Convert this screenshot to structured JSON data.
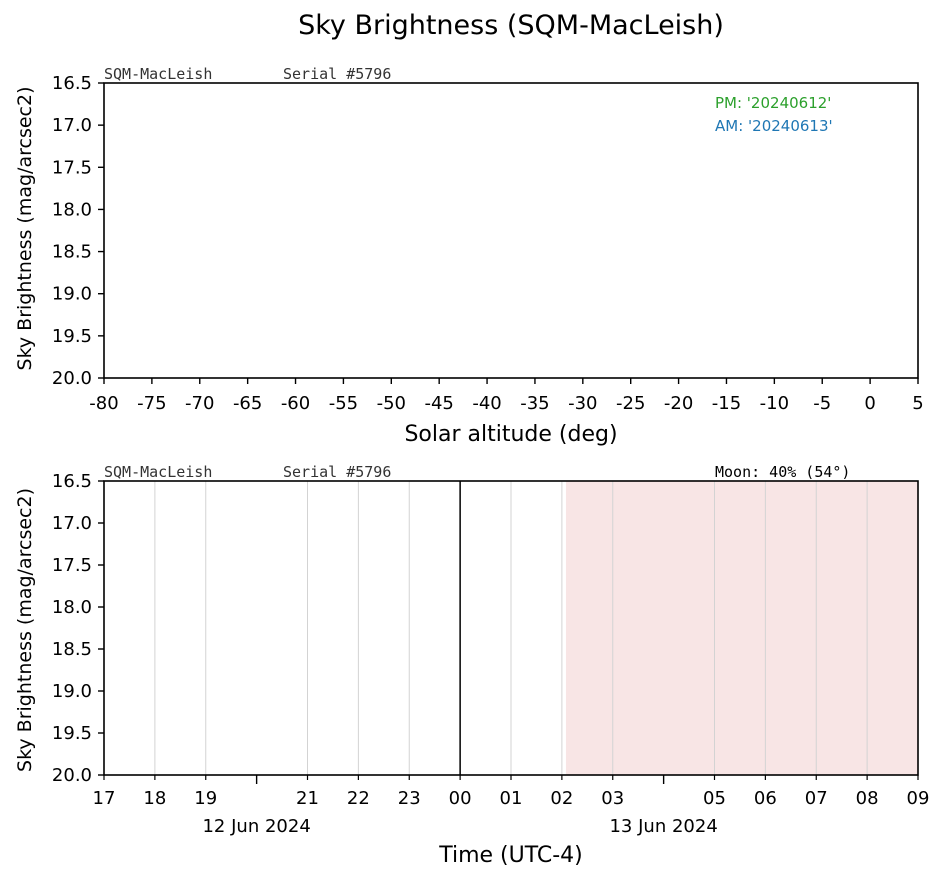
{
  "title": "Sky Brightness (SQM-MacLeish)",
  "colors": {
    "pm": "#2ca02c",
    "am": "#1f77b4",
    "shade": "#f8e5e5",
    "grid": "#d3d3d3"
  },
  "chart_data": [
    {
      "type": "line",
      "station": "SQM-MacLeish",
      "serial": "Serial #5796",
      "xlabel": "Solar altitude (deg)",
      "ylabel": "Sky Brightness (mag/arcsec2)",
      "xlim": [
        -80,
        5
      ],
      "ylim": [
        20.0,
        16.5
      ],
      "xticks": [
        "-80",
        "-75",
        "-70",
        "-65",
        "-60",
        "-55",
        "-50",
        "-45",
        "-40",
        "-35",
        "-30",
        "-25",
        "-20",
        "-15",
        "-10",
        "-5",
        "0",
        "5"
      ],
      "yticks": [
        "16.5",
        "17.0",
        "17.5",
        "18.0",
        "18.5",
        "19.0",
        "19.5",
        "20.0"
      ],
      "legend": {
        "placement": "top-right",
        "entries": [
          "PM: '20240612'",
          "AM: '20240613'"
        ]
      },
      "series": []
    },
    {
      "type": "line",
      "station": "SQM-MacLeish",
      "serial": "Serial #5796",
      "moon": "Moon: 40% (54°)",
      "xlabel": "Time (UTC-4)",
      "ylabel": "Sky Brightness (mag/arcsec2)",
      "ylim": [
        20.0,
        16.5
      ],
      "yticks": [
        "16.5",
        "17.0",
        "17.5",
        "18.0",
        "18.5",
        "19.0",
        "19.5",
        "20.0"
      ],
      "x_hours": [
        17,
        18,
        19,
        20,
        21,
        22,
        23,
        24,
        25,
        26,
        27,
        28,
        29,
        30,
        31,
        32,
        33
      ],
      "xticks": [
        {
          "hour": 17,
          "label": "17"
        },
        {
          "hour": 18,
          "label": "18"
        },
        {
          "hour": 19,
          "label": "19"
        },
        {
          "hour": 21,
          "label": "21"
        },
        {
          "hour": 22,
          "label": "22"
        },
        {
          "hour": 23,
          "label": "23"
        },
        {
          "hour": 24,
          "label": "00"
        },
        {
          "hour": 25,
          "label": "01"
        },
        {
          "hour": 26,
          "label": "02"
        },
        {
          "hour": 27,
          "label": "03"
        },
        {
          "hour": 29,
          "label": "05"
        },
        {
          "hour": 30,
          "label": "06"
        },
        {
          "hour": 31,
          "label": "07"
        },
        {
          "hour": 32,
          "label": "08"
        },
        {
          "hour": 33,
          "label": "09"
        }
      ],
      "date_labels": [
        {
          "hour": 20,
          "label": "12 Jun 2024"
        },
        {
          "hour": 28,
          "label": "13 Jun 2024"
        }
      ],
      "midnight_hour": 24,
      "shaded_range": [
        26.08,
        33
      ],
      "series": []
    }
  ]
}
